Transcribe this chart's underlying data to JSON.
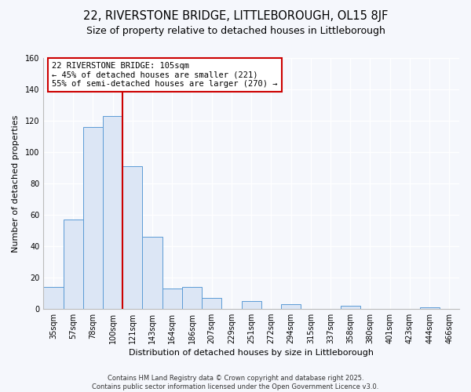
{
  "title": "22, RIVERSTONE BRIDGE, LITTLEBOROUGH, OL15 8JF",
  "subtitle": "Size of property relative to detached houses in Littleborough",
  "xlabel": "Distribution of detached houses by size in Littleborough",
  "ylabel": "Number of detached properties",
  "categories": [
    "35sqm",
    "57sqm",
    "78sqm",
    "100sqm",
    "121sqm",
    "143sqm",
    "164sqm",
    "186sqm",
    "207sqm",
    "229sqm",
    "251sqm",
    "272sqm",
    "294sqm",
    "315sqm",
    "337sqm",
    "358sqm",
    "380sqm",
    "401sqm",
    "423sqm",
    "444sqm",
    "466sqm"
  ],
  "values": [
    14,
    57,
    116,
    123,
    91,
    46,
    13,
    14,
    7,
    0,
    5,
    0,
    3,
    0,
    0,
    2,
    0,
    0,
    0,
    1,
    0
  ],
  "bar_color": "#dce6f5",
  "bar_edge_color": "#5b9bd5",
  "vline_index": 3.5,
  "vline_color": "#cc0000",
  "annotation_text": "22 RIVERSTONE BRIDGE: 105sqm\n← 45% of detached houses are smaller (221)\n55% of semi-detached houses are larger (270) →",
  "annotation_box_color": "#ffffff",
  "annotation_box_edge": "#cc0000",
  "ylim": [
    0,
    160
  ],
  "yticks": [
    0,
    20,
    40,
    60,
    80,
    100,
    120,
    140,
    160
  ],
  "footer_line1": "Contains HM Land Registry data © Crown copyright and database right 2025.",
  "footer_line2": "Contains public sector information licensed under the Open Government Licence v3.0.",
  "plot_bg_color": "#f5f7fc",
  "fig_bg_color": "#f5f7fc",
  "title_fontsize": 10.5,
  "subtitle_fontsize": 9,
  "label_fontsize": 8,
  "tick_fontsize": 7,
  "annotation_fontsize": 7.5,
  "footer_fontsize": 6
}
